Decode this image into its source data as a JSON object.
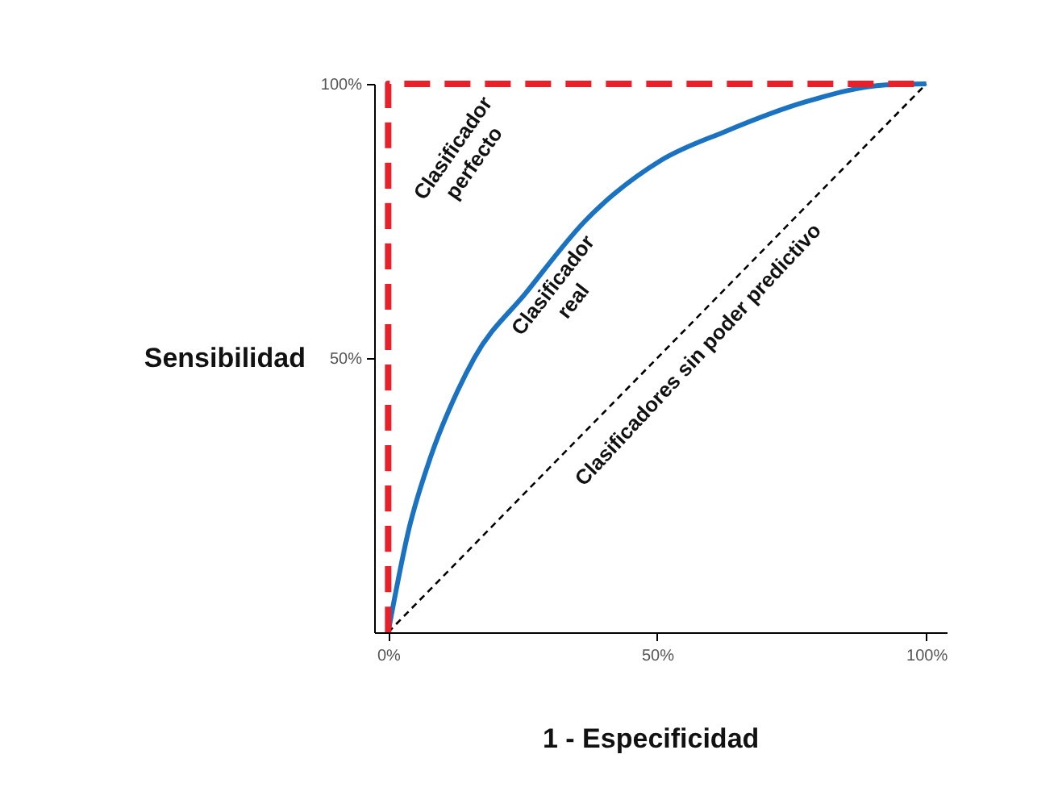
{
  "chart_data": {
    "type": "line",
    "xlabel": "1 - Especificidad",
    "ylabel": "Sensibilidad",
    "xlim": [
      -2.6,
      103.8
    ],
    "ylim": [
      0,
      100
    ],
    "xticks": [
      {
        "value": 0,
        "label": "0%"
      },
      {
        "value": 50,
        "label": "50%"
      },
      {
        "value": 100,
        "label": "100%"
      }
    ],
    "yticks": [
      {
        "value": 50,
        "label": "50%"
      },
      {
        "value": 100,
        "label": "100%"
      }
    ],
    "grid": false,
    "marker": "none",
    "series": [
      {
        "color": "#000000",
        "line_style": "dashed",
        "x": [
          0,
          100
        ],
        "values": [
          0,
          100
        ]
      },
      {
        "color": "#1b72c0",
        "line_style": "solid",
        "x": [
          0,
          3.9,
          7.9,
          12.9,
          16,
          25.7,
          36.6,
          50.6,
          62.6,
          77.5,
          92.5,
          100
        ],
        "values": [
          0,
          19,
          32,
          44,
          50,
          62,
          75,
          86,
          91.3,
          96.7,
          99.8,
          100
        ]
      },
      {
        "color": "#e8202a",
        "line_style": "dashed",
        "x": [
          0,
          0,
          100
        ],
        "values": [
          0,
          100,
          100
        ]
      }
    ],
    "annotations": [
      "Clasificador perfecto",
      "Clasificador real",
      "Clasificadores sin poder predictivo"
    ]
  }
}
